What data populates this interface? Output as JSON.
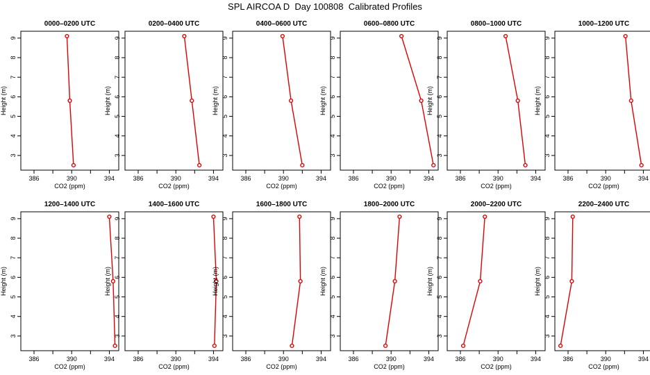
{
  "title": "SPL AIRCOA D  Day 100808  Calibrated Profiles",
  "colors": {
    "line": "#dd0000",
    "axis": "#000000"
  },
  "chart_data": {
    "type": "line",
    "xlabel": "CO2 (ppm)",
    "ylabel": "Height (m)",
    "xlim": [
      384.6,
      395.0
    ],
    "ylim": [
      2.25,
      9.35
    ],
    "xticks": [
      386,
      388,
      390,
      392,
      394
    ],
    "xtick_labels": [
      "386",
      "390",
      "394"
    ],
    "xtick_labeled_values": [
      386,
      390,
      394
    ],
    "yticks": [
      3,
      4,
      5,
      6,
      7,
      8,
      9
    ],
    "ytick_labels": [
      "3",
      "4",
      "5",
      "6",
      "7",
      "8",
      "9"
    ],
    "heights": [
      9.1,
      5.8,
      2.5
    ],
    "panels": [
      {
        "title": "0000–0200 UTC",
        "x": [
          389.5,
          389.8,
          390.2
        ]
      },
      {
        "title": "0200–0400 UTC",
        "x": [
          390.9,
          391.7,
          392.5
        ]
      },
      {
        "title": "0400–0600 UTC",
        "x": [
          389.9,
          390.8,
          392.0
        ]
      },
      {
        "title": "0600–0800 UTC",
        "x": [
          391.1,
          393.2,
          394.5
        ]
      },
      {
        "title": "0800–1000 UTC",
        "x": [
          390.8,
          392.1,
          392.9
        ]
      },
      {
        "title": "1000–1200 UTC",
        "x": [
          392.1,
          392.7,
          393.8
        ]
      },
      {
        "title": "1200–1400 UTC",
        "x": [
          394.0,
          394.4,
          394.6
        ]
      },
      {
        "title": "1400–1600 UTC",
        "x": [
          394.0,
          394.3,
          394.1
        ]
      },
      {
        "title": "1600–1800 UTC",
        "x": [
          391.7,
          391.8,
          390.9
        ]
      },
      {
        "title": "1800–2000 UTC",
        "x": [
          390.9,
          390.4,
          389.4
        ]
      },
      {
        "title": "2000–2200 UTC",
        "x": [
          388.6,
          388.1,
          386.3
        ]
      },
      {
        "title": "2200–2400 UTC",
        "x": [
          386.5,
          386.4,
          385.2
        ]
      }
    ]
  }
}
